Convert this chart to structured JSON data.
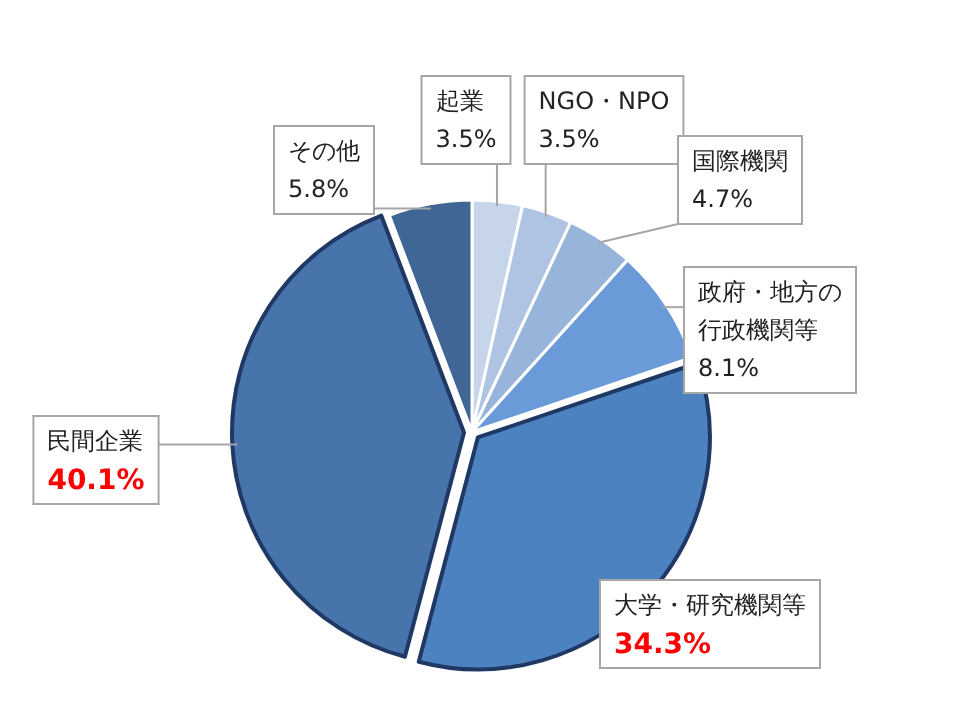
{
  "chart_data": {
    "type": "pie",
    "categories": [
      "起業",
      "NGO・NPO",
      "国際機関",
      "政府・地方の行政機関等",
      "大学・研究機関等",
      "民間企業",
      "その他"
    ],
    "values": [
      3.5,
      3.5,
      4.7,
      8.1,
      34.3,
      40.1,
      5.8
    ],
    "colors": [
      "#c6d5ea",
      "#aec4e2",
      "#97b4db",
      "#6a9bd8",
      "#4d82c0",
      "#4674ab",
      "#3f6694"
    ],
    "value_labels": [
      "3.5%",
      "3.5%",
      "4.7%",
      "8.1%",
      "34.3%",
      "40.1%",
      "5.8%"
    ]
  }
}
